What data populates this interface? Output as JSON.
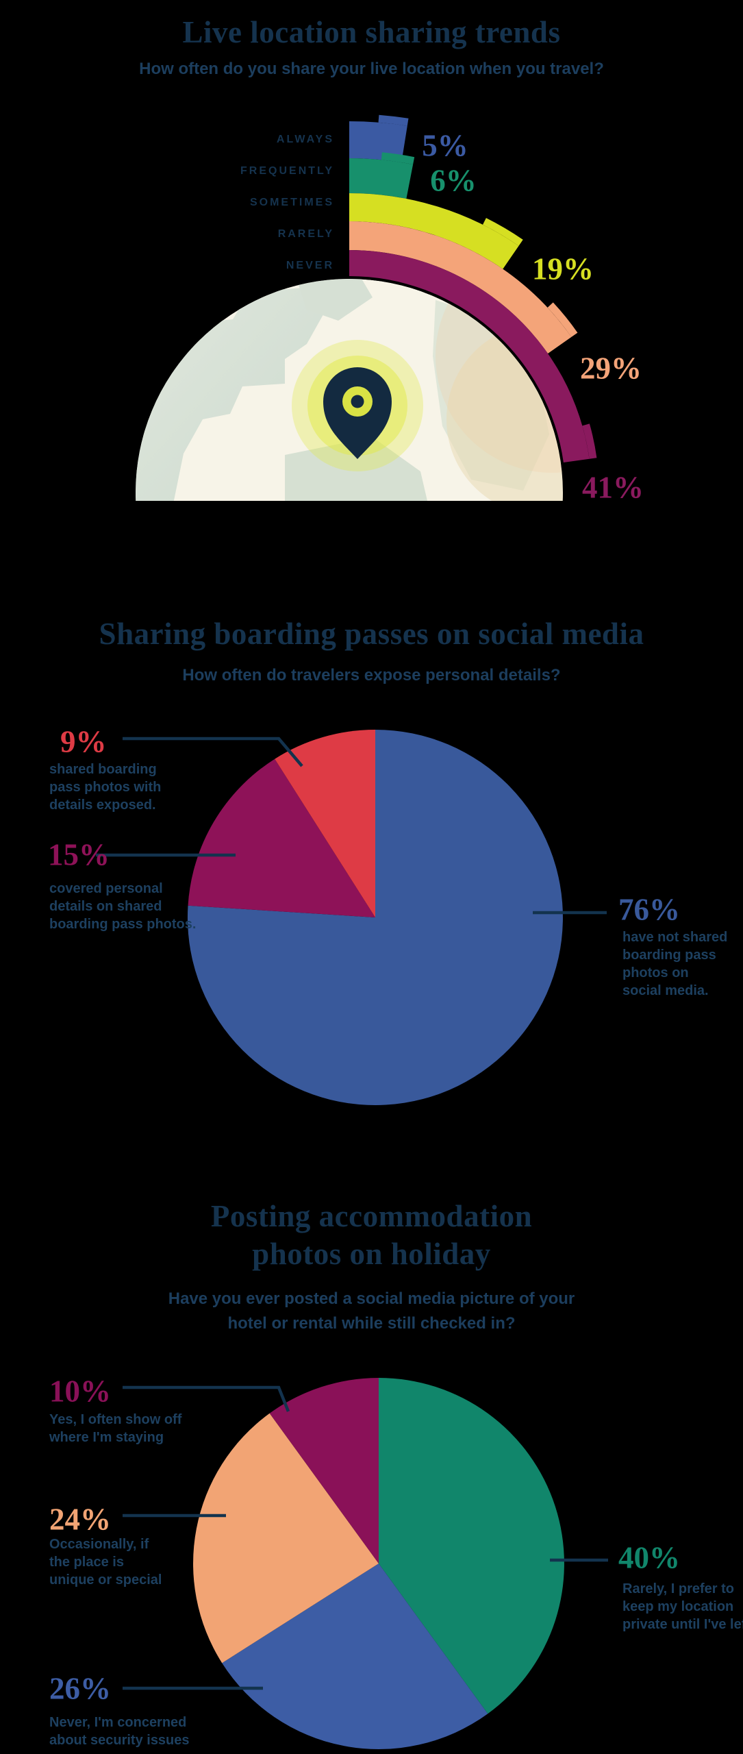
{
  "background": "#000000",
  "text_colors": {
    "title": "#15334E",
    "subtitle": "#1C3E5E",
    "desc": "#1D4060",
    "leader": "#13334E"
  },
  "chart_data": [
    {
      "type": "radial_bar",
      "title_lines": [
        "Live location sharing trends"
      ],
      "subtitle_lines": [
        "How often do you share your live location when you travel?"
      ],
      "categories": [
        "ALWAYS",
        "FREQUENTLY",
        "SOMETIMES",
        "RARELY",
        "NEVER"
      ],
      "values": [
        5,
        6,
        19,
        29,
        41
      ],
      "labels": [
        "5%",
        "6%",
        "19%",
        "29%",
        "41%"
      ],
      "colors": [
        "#3B5AA3",
        "#17906C",
        "#D6DF22",
        "#F4A479",
        "#8A1A5E"
      ],
      "center_icon": "map-location-pin-on-globe"
    },
    {
      "type": "pie",
      "title_lines": [
        "Sharing boarding passes on social media"
      ],
      "subtitle_lines": [
        "How often do travelers expose personal details?"
      ],
      "slices": [
        {
          "label": "76%",
          "value": 76,
          "color": "#39599B",
          "desc": [
            "have not shared",
            "boarding pass",
            "photos on",
            "social media."
          ]
        },
        {
          "label": "15%",
          "value": 15,
          "color": "#8E1258",
          "desc": [
            "covered personal",
            "details on shared",
            "boarding pass photos."
          ]
        },
        {
          "label": "9%",
          "value": 9,
          "color": "#DE3B45",
          "desc": [
            "shared boarding",
            "pass photos with",
            "details exposed."
          ]
        }
      ]
    },
    {
      "type": "pie",
      "title_lines": [
        "Posting accommodation",
        "photos on holiday"
      ],
      "subtitle_lines": [
        "Have you ever posted a social media picture of your",
        "hotel or rental while still checked in?"
      ],
      "slices": [
        {
          "label": "40%",
          "value": 40,
          "color": "#11866B",
          "desc": [
            "Rarely, I prefer to",
            "keep my location",
            "private until I've left"
          ]
        },
        {
          "label": "26%",
          "value": 26,
          "color": "#3D5DA5",
          "desc": [
            "Never, I'm concerned",
            "about security issues"
          ]
        },
        {
          "label": "24%",
          "value": 24,
          "color": "#F2A474",
          "desc": [
            "Occasionally, if",
            "the place is",
            "unique or special"
          ]
        },
        {
          "label": "10%",
          "value": 10,
          "color": "#8A1158",
          "desc": [
            "Yes, I often show off",
            "where I'm staying"
          ]
        }
      ]
    }
  ]
}
